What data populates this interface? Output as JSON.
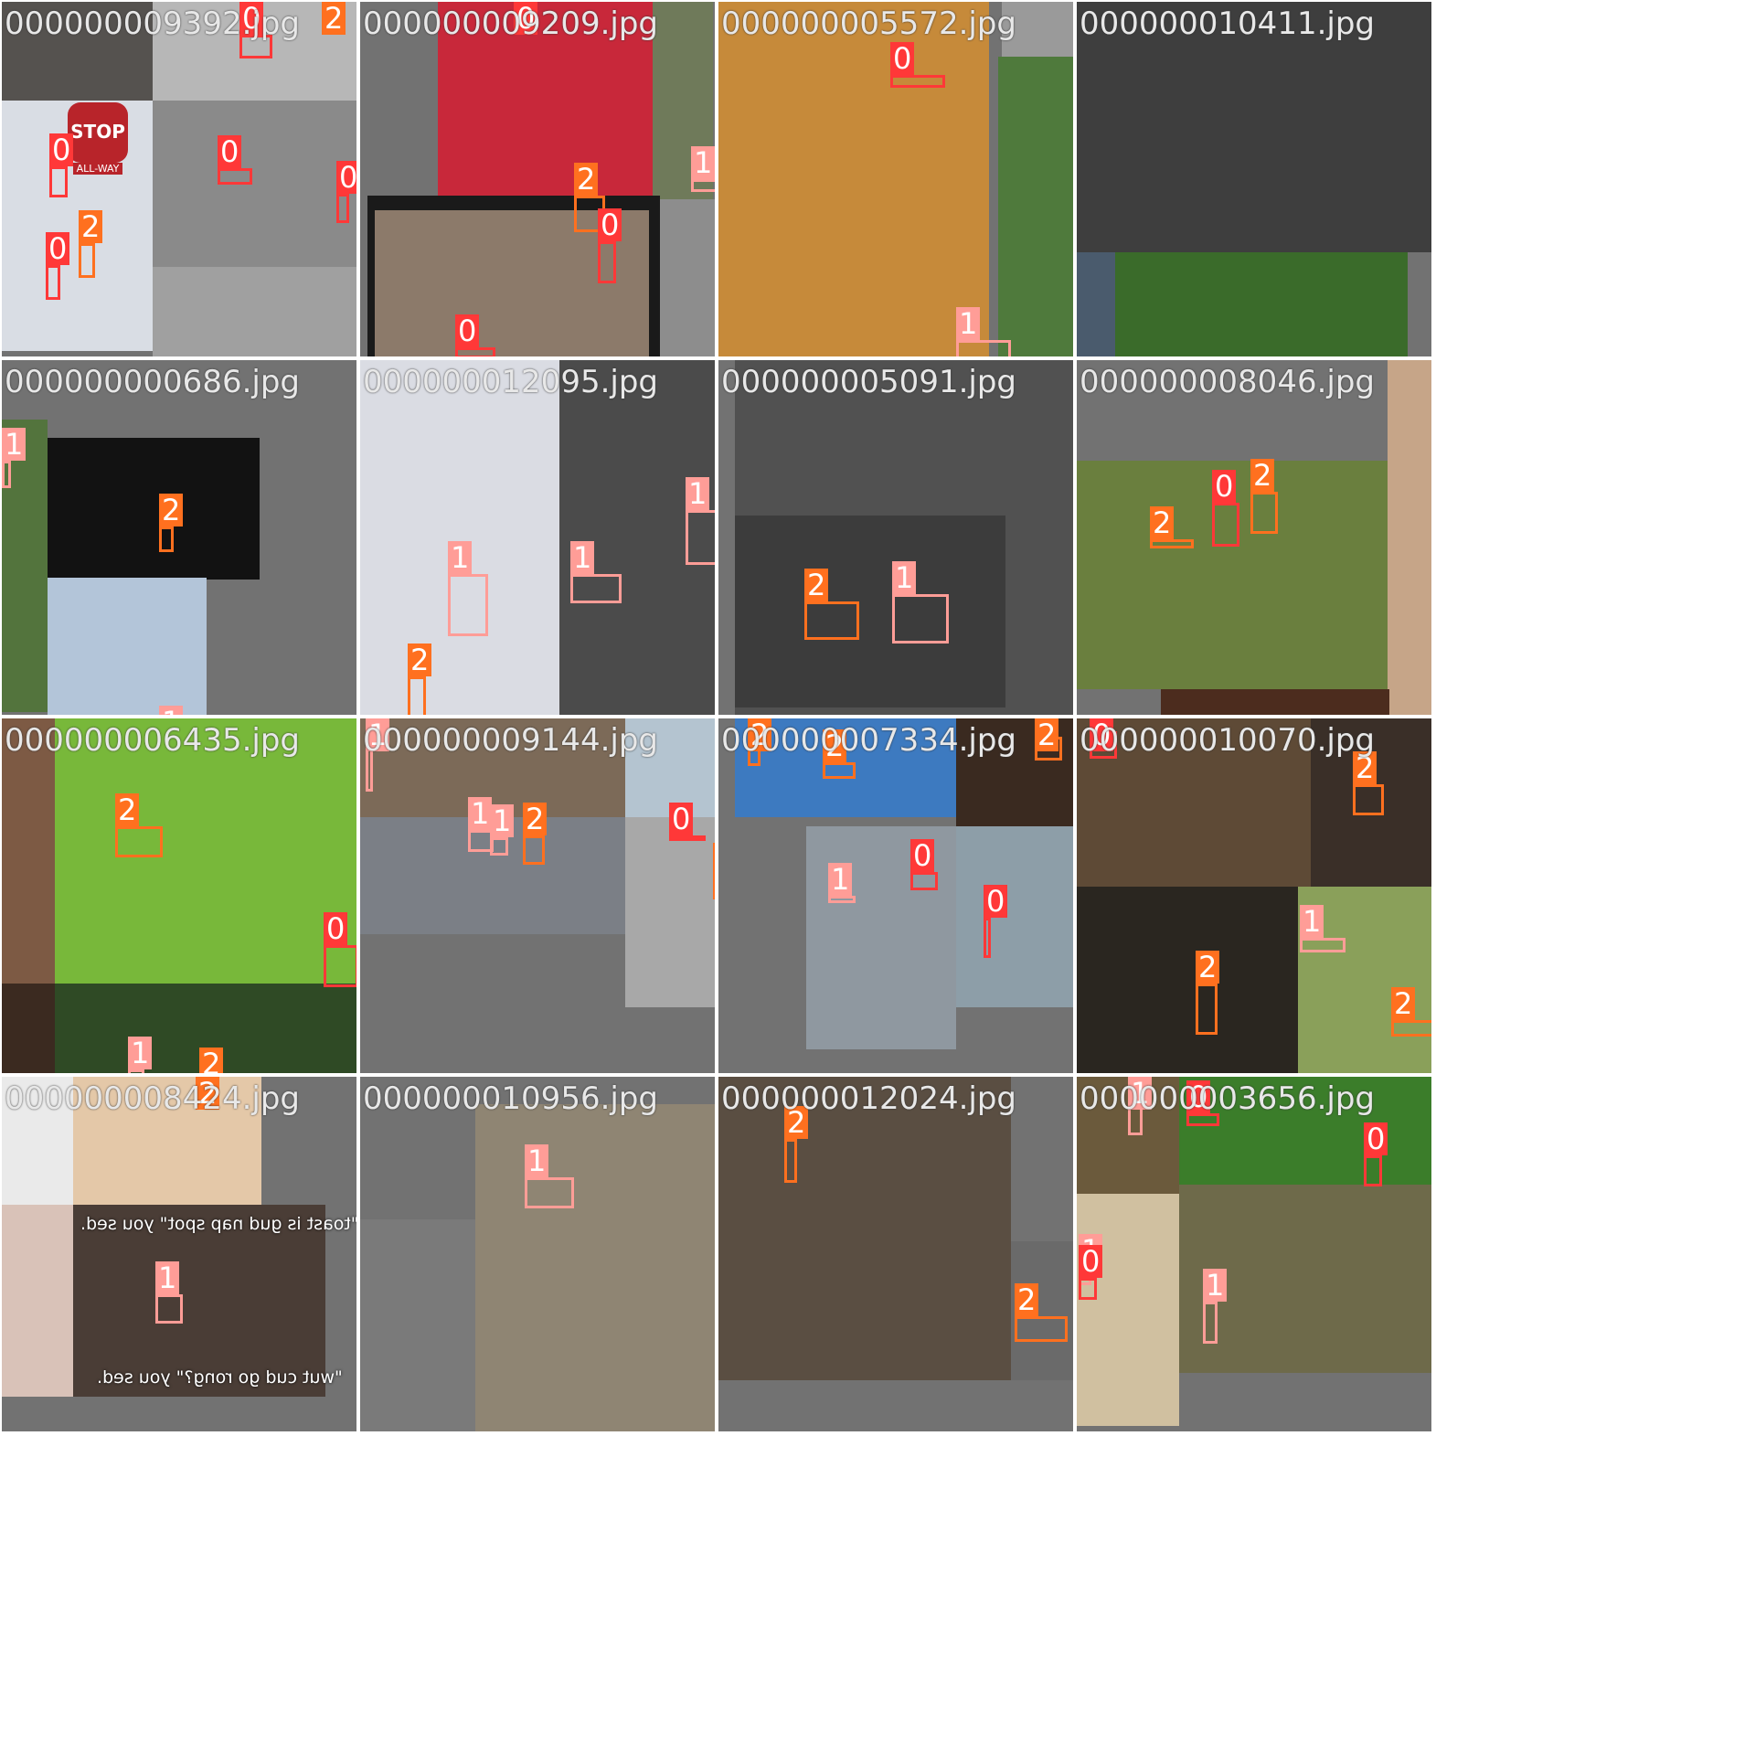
{
  "grid": {
    "tiles": [
      {
        "title": "000000009392.jpg"
      },
      {
        "title": "000000009209.jpg"
      },
      {
        "title": "000000005572.jpg"
      },
      {
        "title": "000000010411.jpg"
      },
      {
        "title": "000000000686.jpg"
      },
      {
        "title": "000000012095.jpg"
      },
      {
        "title": "000000005091.jpg"
      },
      {
        "title": "000000008046.jpg"
      },
      {
        "title": "000000006435.jpg"
      },
      {
        "title": "000000009144.jpg"
      },
      {
        "title": "000000007334.jpg"
      },
      {
        "title": "000000010070.jpg"
      },
      {
        "title": "000000008424.jpg"
      },
      {
        "title": "000000010956.jpg"
      },
      {
        "title": "000000012024.jpg"
      },
      {
        "title": "000000003656.jpg"
      }
    ]
  },
  "signs": {
    "stop": "STOP",
    "all_way": "ALL-WAY"
  },
  "meme": {
    "top_caption": "\"toast is gud nap spot\" you sed.",
    "bottom_caption": "\"wut cud go rong?\" you sed."
  },
  "class_colors": {
    "0": "#ff3838",
    "1": "#ff9d97",
    "2": "#ff701f"
  }
}
